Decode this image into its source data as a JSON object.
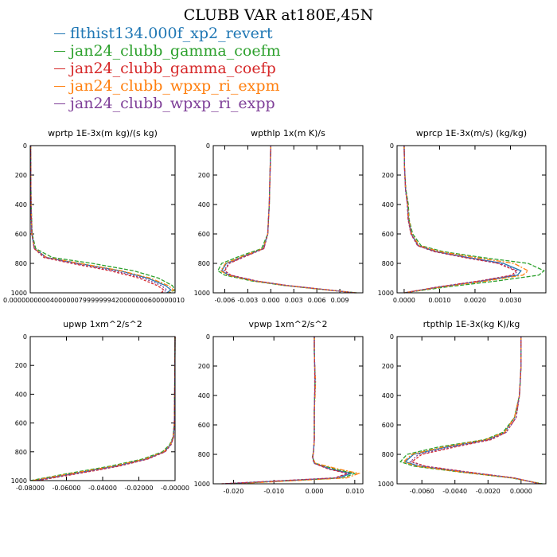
{
  "figure": {
    "title": "CLUBB VAR at180E,45N",
    "legend": [
      {
        "name": "flthist134.000f_xp2_revert",
        "color": "#1f77b4"
      },
      {
        "name": "jan24_clubb_gamma_coefm",
        "color": "#2ca02c"
      },
      {
        "name": "jan24_clubb_gamma_coefp",
        "color": "#d62728"
      },
      {
        "name": "jan24_clubb_wpxp_ri_expm",
        "color": "#ff7f0e"
      },
      {
        "name": "jan24_clubb_wpxp_ri_expp",
        "color": "#7f3f98"
      }
    ]
  },
  "chart_data": [
    {
      "type": "line",
      "title": "wprtp  1E-3x(m kg)/(s kg)",
      "xlim": [
        0,
        1.05e-05
      ],
      "ylim": [
        0,
        1000
      ],
      "y_inverted": true,
      "xticks": [
        0,
        0.002,
        0.004,
        0.006,
        0.008,
        0.01
      ],
      "xtick_labels": [
        "0.00000000",
        "0.0020000",
        "0.0040000",
        "0.0060000",
        "0.0080000",
        "0.0100000"
      ],
      "x_label_text": "0.0000000000400000079999999420000000600000010",
      "yticks": [
        0,
        200,
        400,
        600,
        800,
        1000
      ],
      "y": [
        0,
        200,
        400,
        600,
        700,
        760,
        800,
        850,
        900,
        950,
        980,
        1000
      ],
      "series": [
        {
          "name": "flthist134.000f_xp2_revert",
          "color": "#1f77b4",
          "values": [
            3e-08,
            4e-08,
            6e-08,
            1.2e-07,
            3e-07,
            1.2e-06,
            3.5e-06,
            6.5e-06,
            8.5e-06,
            9.8e-06,
            1.02e-05,
            9.9e-06
          ]
        },
        {
          "name": "jan24_clubb_gamma_coefm",
          "color": "#2ca02c",
          "values": [
            3e-08,
            4e-08,
            7e-08,
            1.4e-07,
            4e-07,
            1.6e-06,
            4.5e-06,
            7.5e-06,
            9.3e-06,
            1.03e-05,
            1.05e-05,
            1.01e-05
          ]
        },
        {
          "name": "jan24_clubb_gamma_coefp",
          "color": "#d62728",
          "values": [
            3e-08,
            4e-08,
            6e-08,
            1.1e-07,
            3e-07,
            1e-06,
            3e-06,
            5.8e-06,
            7.9e-06,
            9.2e-06,
            9.7e-06,
            9.5e-06
          ]
        },
        {
          "name": "jan24_clubb_wpxp_ri_expm",
          "color": "#ff7f0e",
          "values": [
            3e-08,
            4e-08,
            6e-08,
            1.2e-07,
            3e-07,
            1.2e-06,
            3.6e-06,
            6.6e-06,
            8.7e-06,
            1e-05,
            1.04e-05,
            1e-05
          ]
        },
        {
          "name": "jan24_clubb_wpxp_ri_expp",
          "color": "#7f3f98",
          "values": [
            3e-08,
            4e-08,
            6e-08,
            1.1e-07,
            3e-07,
            1.1e-06,
            3.2e-06,
            6.1e-06,
            8.2e-06,
            9.5e-06,
            9.9e-06,
            9.6e-06
          ]
        }
      ]
    },
    {
      "type": "line",
      "title": "wpthlp  1x(m K)/s",
      "xlim": [
        -0.0075,
        0.012
      ],
      "ylim": [
        0,
        1000
      ],
      "y_inverted": true,
      "xticks": [
        -0.006,
        -0.003,
        0.0,
        0.003,
        0.006,
        0.009
      ],
      "xtick_labels": [
        "-0.006",
        "-0.003",
        "0.000",
        "0.003",
        "0.006",
        "0.009"
      ],
      "yticks": [
        0,
        200,
        400,
        600,
        800,
        1000
      ],
      "y": [
        0,
        200,
        400,
        500,
        600,
        700,
        750,
        800,
        850,
        880,
        920,
        950,
        975,
        1000
      ],
      "series": [
        {
          "name": "flthist134.000f_xp2_revert",
          "color": "#1f77b4",
          "values": [
            0.0,
            -0.0001,
            -0.0002,
            -0.0003,
            -0.0004,
            -0.001,
            -0.0035,
            -0.0058,
            -0.0064,
            -0.0055,
            -0.002,
            0.002,
            0.0065,
            0.011
          ]
        },
        {
          "name": "jan24_clubb_gamma_coefm",
          "color": "#2ca02c",
          "values": [
            0.0,
            -0.0001,
            -0.0002,
            -0.0003,
            -0.0004,
            -0.0012,
            -0.004,
            -0.0064,
            -0.0069,
            -0.006,
            -0.0024,
            0.0018,
            0.0063,
            0.0112
          ]
        },
        {
          "name": "jan24_clubb_gamma_coefp",
          "color": "#d62728",
          "values": [
            0.0,
            -0.0001,
            -0.0002,
            -0.0003,
            -0.0004,
            -0.0009,
            -0.0032,
            -0.0054,
            -0.006,
            -0.0052,
            -0.0018,
            0.0022,
            0.0066,
            0.0109
          ]
        },
        {
          "name": "jan24_clubb_wpxp_ri_expm",
          "color": "#ff7f0e",
          "values": [
            0.0,
            -0.0001,
            -0.0002,
            -0.0003,
            -0.0004,
            -0.001,
            -0.0036,
            -0.0059,
            -0.0065,
            -0.0056,
            -0.0021,
            0.002,
            0.0065,
            0.0111
          ]
        },
        {
          "name": "jan24_clubb_wpxp_ri_expp",
          "color": "#7f3f98",
          "values": [
            0.0,
            -0.0001,
            -0.0002,
            -0.0003,
            -0.0004,
            -0.0009,
            -0.0033,
            -0.0055,
            -0.0061,
            -0.0053,
            -0.0019,
            0.0021,
            0.0066,
            0.011
          ]
        }
      ]
    },
    {
      "type": "line",
      "title": "wprcp  1E-3x(m/s) (kg/kg)",
      "xlim": [
        -0.0002,
        0.004
      ],
      "ylim": [
        0,
        1000
      ],
      "y_inverted": true,
      "xticks": [
        0.0,
        0.001,
        0.002,
        0.003
      ],
      "xtick_labels": [
        "0.0000",
        "0.0010",
        "0.0020",
        "0.0030"
      ],
      "yticks": [
        0,
        200,
        400,
        600,
        800,
        1000
      ],
      "y": [
        0,
        150,
        300,
        400,
        500,
        600,
        680,
        720,
        760,
        800,
        850,
        880,
        920,
        960,
        1000
      ],
      "series": [
        {
          "name": "flthist134.000f_xp2_revert",
          "color": "#1f77b4",
          "values": [
            0.0,
            1e-05,
            4e-05,
            0.0001,
            0.00012,
            0.0002,
            0.0004,
            0.0009,
            0.0018,
            0.0028,
            0.0033,
            0.0032,
            0.0022,
            0.001,
            0.0
          ]
        },
        {
          "name": "jan24_clubb_gamma_coefm",
          "color": "#2ca02c",
          "values": [
            0.0,
            1e-05,
            5e-05,
            0.00012,
            0.00014,
            0.00024,
            0.00048,
            0.0011,
            0.0022,
            0.0035,
            0.00395,
            0.0038,
            0.0026,
            0.0012,
            0.0
          ]
        },
        {
          "name": "jan24_clubb_gamma_coefp",
          "color": "#d62728",
          "values": [
            0.0,
            1e-05,
            4e-05,
            9e-05,
            0.00011,
            0.00019,
            0.00038,
            0.00085,
            0.0017,
            0.00265,
            0.00315,
            0.00305,
            0.0021,
            0.00095,
            0.0
          ]
        },
        {
          "name": "jan24_clubb_wpxp_ri_expm",
          "color": "#ff7f0e",
          "values": [
            0.0,
            1e-05,
            4e-05,
            0.0001,
            0.00013,
            0.00021,
            0.00043,
            0.001,
            0.002,
            0.0031,
            0.0035,
            0.00335,
            0.0023,
            0.00105,
            0.0
          ]
        },
        {
          "name": "jan24_clubb_wpxp_ri_expp",
          "color": "#7f3f98",
          "values": [
            0.0,
            1e-05,
            4e-05,
            9e-05,
            0.00012,
            0.0002,
            0.00039,
            0.00088,
            0.00175,
            0.0027,
            0.0032,
            0.0031,
            0.00215,
            0.00098,
            0.0
          ]
        }
      ]
    },
    {
      "type": "line",
      "title": "upwp  1xm^2/s^2",
      "xlim": [
        -0.08,
        0.0
      ],
      "ylim": [
        0,
        1000
      ],
      "y_inverted": true,
      "xticks": [
        -0.08,
        -0.06,
        -0.04,
        -0.02,
        0.0
      ],
      "xtick_labels": [
        "-0.08000",
        "-0.06000",
        "-0.04000",
        "-0.02000",
        "-0.00000"
      ],
      "yticks": [
        0,
        200,
        400,
        600,
        800,
        1000
      ],
      "y": [
        0,
        200,
        400,
        600,
        700,
        750,
        800,
        850,
        900,
        950,
        1000
      ],
      "series": [
        {
          "name": "flthist134.000f_xp2_revert",
          "color": "#1f77b4",
          "values": [
            0.0,
            -0.0001,
            -0.0002,
            -0.0004,
            -0.001,
            -0.0025,
            -0.006,
            -0.016,
            -0.033,
            -0.056,
            -0.078
          ]
        },
        {
          "name": "jan24_clubb_gamma_coefm",
          "color": "#2ca02c",
          "values": [
            0.0,
            -0.0001,
            -0.0002,
            -0.0004,
            -0.0012,
            -0.003,
            -0.007,
            -0.018,
            -0.036,
            -0.059,
            -0.08
          ]
        },
        {
          "name": "jan24_clubb_gamma_coefp",
          "color": "#d62728",
          "values": [
            0.0,
            -0.0001,
            -0.0002,
            -0.0004,
            -0.0009,
            -0.0022,
            -0.0055,
            -0.015,
            -0.031,
            -0.053,
            -0.076
          ]
        },
        {
          "name": "jan24_clubb_wpxp_ri_expm",
          "color": "#ff7f0e",
          "values": [
            0.0,
            -0.0001,
            -0.0002,
            -0.0004,
            -0.001,
            -0.0026,
            -0.0062,
            -0.0165,
            -0.034,
            -0.057,
            -0.079
          ]
        },
        {
          "name": "jan24_clubb_wpxp_ri_expp",
          "color": "#7f3f98",
          "values": [
            0.0,
            -0.0001,
            -0.0002,
            -0.0004,
            -0.0009,
            -0.0023,
            -0.0057,
            -0.0155,
            -0.032,
            -0.0545,
            -0.077
          ]
        }
      ]
    },
    {
      "type": "line",
      "title": "vpwp  1xm^2/s^2",
      "xlim": [
        -0.025,
        0.012
      ],
      "ylim": [
        0,
        1000
      ],
      "y_inverted": true,
      "xticks": [
        -0.02,
        -0.01,
        0.0,
        0.01
      ],
      "xtick_labels": [
        "-0.020",
        "-0.010",
        "0.000",
        "0.010"
      ],
      "yticks": [
        0,
        200,
        400,
        600,
        800,
        1000
      ],
      "y": [
        0,
        100,
        200,
        300,
        400,
        500,
        600,
        700,
        780,
        820,
        860,
        900,
        930,
        960,
        1000
      ],
      "series": [
        {
          "name": "flthist134.000f_xp2_revert",
          "color": "#1f77b4",
          "values": [
            0.0,
            0.0,
            0.0001,
            0.0002,
            0.0001,
            0.0,
            0.0,
            0.0,
            -0.0002,
            -0.0004,
            0.0,
            0.004,
            0.009,
            0.006,
            -0.022
          ]
        },
        {
          "name": "jan24_clubb_gamma_coefm",
          "color": "#2ca02c",
          "values": [
            0.0,
            0.0,
            0.0001,
            0.0002,
            0.0001,
            0.0,
            0.0,
            0.0,
            -0.0002,
            -0.0005,
            0.0002,
            0.005,
            0.01,
            0.007,
            -0.021
          ]
        },
        {
          "name": "jan24_clubb_gamma_coefp",
          "color": "#d62728",
          "values": [
            0.0,
            0.0,
            0.0001,
            0.0001,
            0.0001,
            0.0,
            0.0,
            0.0,
            -0.0002,
            -0.0004,
            -0.0001,
            0.0035,
            0.0082,
            0.005,
            -0.023
          ]
        },
        {
          "name": "jan24_clubb_wpxp_ri_expm",
          "color": "#ff7f0e",
          "values": [
            0.0,
            0.0,
            0.0001,
            0.0003,
            0.0002,
            0.0,
            0.0,
            0.0,
            -0.0002,
            -0.0004,
            0.0002,
            0.006,
            0.011,
            0.008,
            -0.02
          ]
        },
        {
          "name": "jan24_clubb_wpxp_ri_expp",
          "color": "#7f3f98",
          "values": [
            0.0,
            0.0,
            0.0001,
            0.0002,
            0.0001,
            0.0,
            0.0,
            0.0,
            -0.0002,
            -0.0004,
            -0.0001,
            0.0038,
            0.0085,
            0.0055,
            -0.0225
          ]
        }
      ]
    },
    {
      "type": "line",
      "title": "rtpthlp  1E-3x(kg K)/kg",
      "xlim": [
        -0.0075,
        0.0015
      ],
      "ylim": [
        0,
        1000
      ],
      "y_inverted": true,
      "xticks": [
        -0.006,
        -0.004,
        -0.002,
        0.0
      ],
      "xtick_labels": [
        "-0.0060",
        "-0.0040",
        "-0.0020",
        "0.0000"
      ],
      "yticks": [
        0,
        200,
        400,
        600,
        800,
        1000
      ],
      "y": [
        0,
        200,
        400,
        550,
        650,
        700,
        750,
        800,
        850,
        880,
        920,
        960,
        1000
      ],
      "series": [
        {
          "name": "flthist134.000f_xp2_revert",
          "color": "#1f77b4",
          "values": [
            0.0,
            0.0,
            -0.0001,
            -0.0004,
            -0.001,
            -0.002,
            -0.0045,
            -0.0065,
            -0.007,
            -0.0062,
            -0.0035,
            -0.0005,
            0.0012
          ]
        },
        {
          "name": "jan24_clubb_gamma_coefm",
          "color": "#2ca02c",
          "values": [
            0.0,
            0.0,
            -0.0001,
            -0.0004,
            -0.0011,
            -0.0022,
            -0.005,
            -0.0069,
            -0.0073,
            -0.0065,
            -0.0037,
            -0.0006,
            0.0013
          ]
        },
        {
          "name": "jan24_clubb_gamma_coefp",
          "color": "#d62728",
          "values": [
            0.0,
            0.0,
            -0.0001,
            -0.0003,
            -0.0009,
            -0.0018,
            -0.004,
            -0.006,
            -0.0066,
            -0.0058,
            -0.0032,
            -0.0004,
            0.0011
          ]
        },
        {
          "name": "jan24_clubb_wpxp_ri_expm",
          "color": "#ff7f0e",
          "values": [
            0.0,
            0.0,
            -0.0001,
            -0.0004,
            -0.001,
            -0.0021,
            -0.0047,
            -0.0066,
            -0.0071,
            -0.0063,
            -0.0036,
            -0.0005,
            0.0012
          ]
        },
        {
          "name": "jan24_clubb_wpxp_ri_expp",
          "color": "#7f3f98",
          "values": [
            0.0,
            0.0,
            -0.0001,
            -0.0003,
            -0.0009,
            -0.0019,
            -0.0042,
            -0.0062,
            -0.0067,
            -0.0059,
            -0.0033,
            -0.0004,
            0.0011
          ]
        }
      ]
    }
  ]
}
